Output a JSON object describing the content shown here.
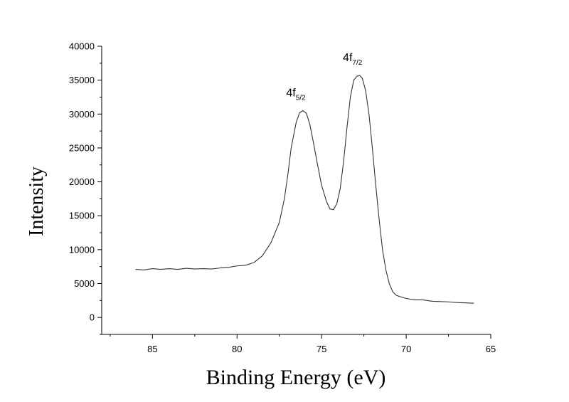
{
  "chart_data": {
    "type": "line",
    "title": "",
    "xlabel": "Binding Energy (eV)",
    "ylabel": "Intensity",
    "xlim": [
      88,
      65
    ],
    "ylim": [
      -2500,
      40000
    ],
    "x_reversed": true,
    "x_ticks": [
      85,
      80,
      75,
      70,
      65
    ],
    "y_ticks": [
      0,
      5000,
      10000,
      15000,
      20000,
      25000,
      30000,
      35000,
      40000
    ],
    "grid": false,
    "legend": "none",
    "line_color": "#333333",
    "series": [
      {
        "x": [
          86.0,
          85.5,
          85.0,
          84.5,
          84.0,
          83.5,
          83.0,
          82.5,
          82.0,
          81.5,
          81.0,
          80.5,
          80.0,
          79.5,
          79.0,
          78.5,
          78.0,
          77.5,
          77.2,
          77.0,
          76.8,
          76.5,
          76.3,
          76.1,
          75.9,
          75.7,
          75.5,
          75.2,
          75.0,
          74.7,
          74.5,
          74.3,
          74.1,
          73.9,
          73.7,
          73.5,
          73.3,
          73.1,
          72.9,
          72.75,
          72.6,
          72.4,
          72.2,
          72.0,
          71.8,
          71.6,
          71.4,
          71.2,
          71.0,
          70.8,
          70.6,
          70.4,
          70.0,
          69.5,
          69.0,
          68.5,
          68.0,
          67.5,
          67.0,
          66.5,
          66.0
        ],
        "y": [
          7100,
          7000,
          7200,
          7100,
          7200,
          7100,
          7250,
          7150,
          7200,
          7150,
          7300,
          7400,
          7600,
          7700,
          8100,
          9100,
          11000,
          14000,
          17500,
          21000,
          25000,
          28800,
          30200,
          30500,
          30100,
          28500,
          26000,
          22000,
          19500,
          17000,
          16000,
          15900,
          16800,
          19000,
          23000,
          28000,
          32500,
          35000,
          35600,
          35700,
          35300,
          33500,
          30000,
          25000,
          19500,
          14500,
          10000,
          7000,
          5000,
          3800,
          3300,
          3100,
          2800,
          2600,
          2600,
          2400,
          2350,
          2300,
          2200,
          2150,
          2100
        ]
      }
    ],
    "annotations": [
      {
        "text": "4f",
        "sub": "5/2",
        "x": 76.1,
        "y": 30500
      },
      {
        "text": "4f",
        "sub": "7/2",
        "x": 72.75,
        "y": 35700
      }
    ]
  }
}
